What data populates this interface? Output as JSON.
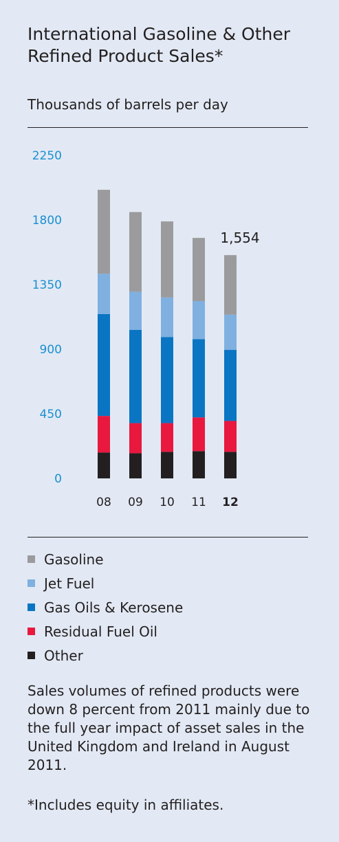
{
  "title": "International Gasoline & Other Refined Product Sales*",
  "subtitle": "Thousands of barrels per day",
  "chart_data": {
    "type": "bar",
    "stacked": true,
    "categories": [
      "08",
      "09",
      "10",
      "11",
      "12"
    ],
    "highlight_category": "12",
    "yticks": [
      "0",
      "450",
      "900",
      "1350",
      "1800",
      "2250"
    ],
    "ylim": [
      0,
      2250
    ],
    "grid": false,
    "data_label": {
      "category": "12",
      "text": "1,554"
    },
    "series": [
      {
        "name": "Other",
        "color": "#231f20",
        "values": [
          180,
          175,
          185,
          190,
          185
        ]
      },
      {
        "name": "Residual Fuel Oil",
        "color": "#e8183f",
        "values": [
          255,
          210,
          200,
          235,
          215
        ]
      },
      {
        "name": "Gas Oils & Kerosene",
        "color": "#0a75c2",
        "values": [
          710,
          650,
          600,
          545,
          495
        ]
      },
      {
        "name": "Jet Fuel",
        "color": "#7fb0e0",
        "values": [
          280,
          265,
          275,
          265,
          245
        ]
      },
      {
        "name": "Gasoline",
        "color": "#9b9b9d",
        "values": [
          585,
          555,
          530,
          440,
          415
        ]
      }
    ]
  },
  "legend": [
    {
      "label": "Gasoline",
      "color": "#9b9b9d"
    },
    {
      "label": "Jet Fuel",
      "color": "#7fb0e0"
    },
    {
      "label": "Gas Oils & Kerosene",
      "color": "#0a75c2"
    },
    {
      "label": "Residual Fuel Oil",
      "color": "#e8183f"
    },
    {
      "label": "Other",
      "color": "#231f20"
    }
  ],
  "note": "Sales volumes of refined products were down 8 percent from 2011 mainly due to the full year impact of asset sales in the United Kingdom and Ireland in August 2011.",
  "footnote": "*Includes equity in affiliates."
}
